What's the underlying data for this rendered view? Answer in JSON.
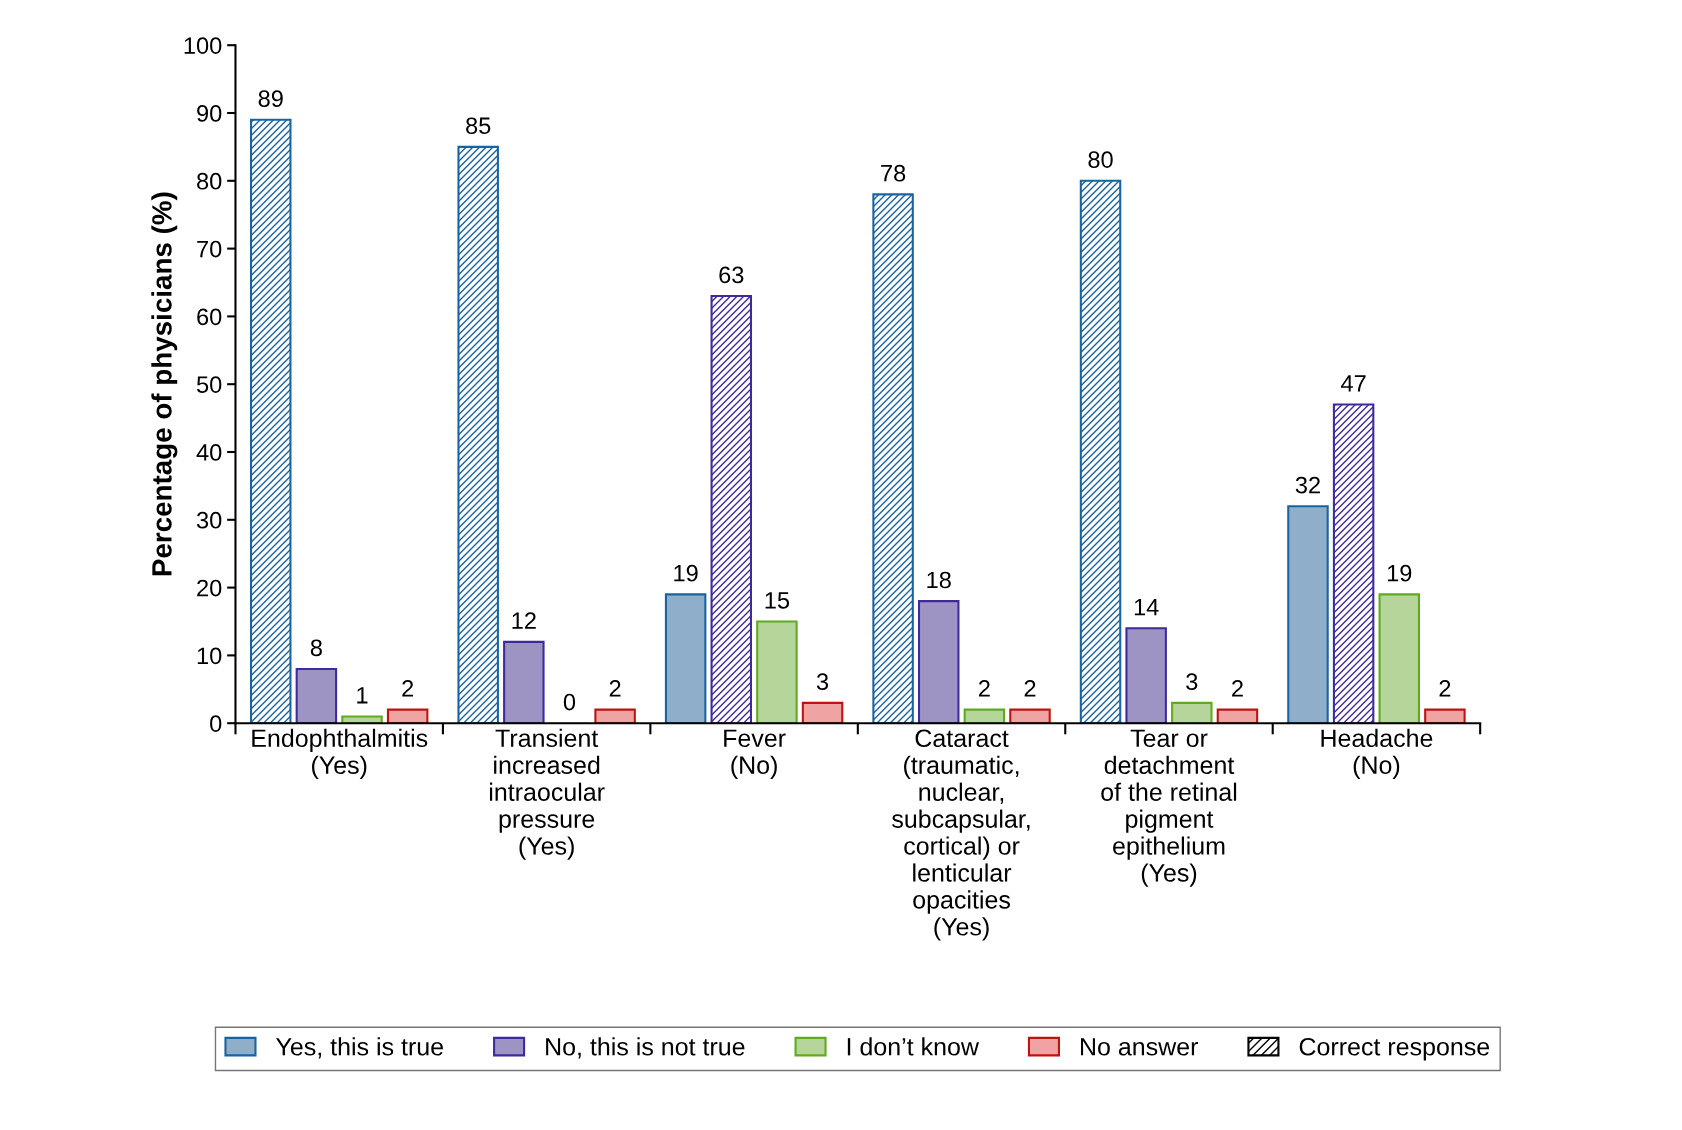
{
  "chart_data": {
    "type": "bar",
    "ylabel": "Percentage of physicians (%)",
    "categories": [
      "Endophthalmitis\n(Yes)",
      "Transient\nincreased\nintraocular\npressure\n(Yes)",
      "Fever\n(No)",
      "Cataract\n(traumatic,\nnuclear,\nsubcapsular,\ncortical) or\nlenticular\nopacities\n(Yes)",
      "Tear or\ndetachment\nof the retinal\npigment\nepithelium\n(Yes)",
      "Headache\n(No)"
    ],
    "series": [
      {
        "name": "Yes, this is true",
        "color": "#8eaec9",
        "colors": [
          "#1963a1",
          "#1963a1",
          "#8eaec9",
          "#1963a1",
          "#1963a1",
          "#8eaec9"
        ],
        "values": [
          89,
          85,
          19,
          78,
          80,
          32
        ]
      },
      {
        "name": "No, this is not true",
        "color": "#9d94c4",
        "colors": [
          "#9d94c4",
          "#9d94c4",
          "#3f299d",
          "#9d94c4",
          "#9d94c4",
          "#3f299d"
        ],
        "values": [
          8,
          12,
          63,
          18,
          14,
          47
        ]
      },
      {
        "name": "I don’t know",
        "color": "#b5d59a",
        "values": [
          1,
          0,
          15,
          2,
          3,
          19
        ]
      },
      {
        "name": "No answer",
        "color": "#f0a3a3",
        "values": [
          2,
          2,
          3,
          2,
          2,
          2
        ]
      }
    ],
    "annotations": [
      "Correct response"
    ],
    "ylim": [
      0,
      100
    ],
    "yticks": [
      0,
      10,
      20,
      30,
      40,
      50,
      60,
      70,
      80,
      90,
      100
    ],
    "data_labels": true,
    "legend": "bottom"
  }
}
